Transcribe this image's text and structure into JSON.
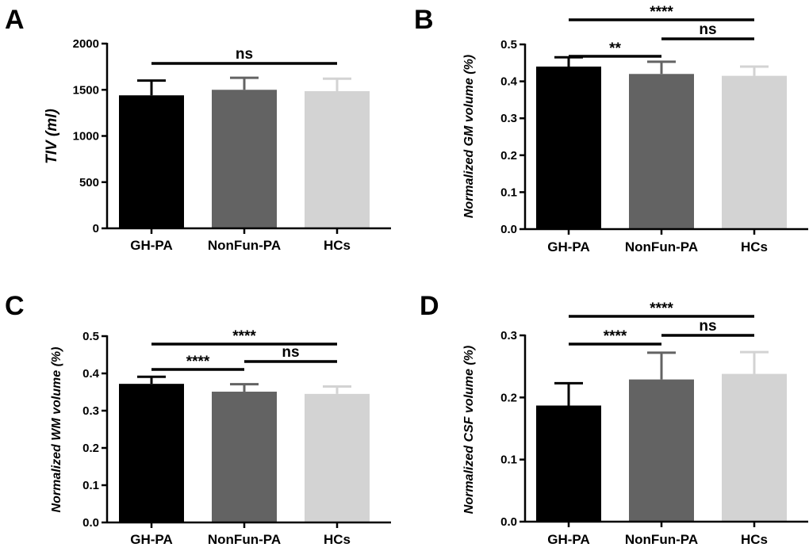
{
  "figure": {
    "panel_count": 4
  },
  "colors": {
    "bar_fills": [
      "#000000",
      "#636363",
      "#d3d3d3"
    ]
  },
  "chart_data": [
    {
      "panel": "A",
      "type": "bar",
      "categories": [
        "GH-PA",
        "NonFun-PA",
        "HCs"
      ],
      "values": [
        1440,
        1500,
        1485
      ],
      "errors": [
        160,
        130,
        135
      ],
      "ylabel": "TIV (ml)",
      "ylim": [
        0,
        2000
      ],
      "yticks": [
        0,
        500,
        1000,
        1500,
        2000
      ],
      "tick_labels": [
        "0",
        "500",
        "1000",
        "1500",
        "2000"
      ],
      "significance": [
        {
          "from": 0,
          "to": 2,
          "level": 1,
          "label": "ns"
        }
      ]
    },
    {
      "panel": "B",
      "type": "bar",
      "categories": [
        "GH-PA",
        "NonFun-PA",
        "HCs"
      ],
      "values": [
        0.44,
        0.42,
        0.415
      ],
      "errors": [
        0.025,
        0.033,
        0.025
      ],
      "ylabel": "Normalized GM volume (%)",
      "ylim": [
        0,
        0.5
      ],
      "yticks": [
        0,
        0.1,
        0.2,
        0.3,
        0.4,
        0.5
      ],
      "tick_labels": [
        "0.0",
        "0.1",
        "0.2",
        "0.3",
        "0.4",
        "0.5"
      ],
      "significance": [
        {
          "from": 0,
          "to": 1,
          "level": 1,
          "label": "**"
        },
        {
          "from": 1,
          "to": 2,
          "level": 2,
          "label": "ns"
        },
        {
          "from": 0,
          "to": 2,
          "level": 3,
          "label": "****"
        }
      ]
    },
    {
      "panel": "C",
      "type": "bar",
      "categories": [
        "GH-PA",
        "NonFun-PA",
        "HCs"
      ],
      "values": [
        0.372,
        0.351,
        0.345
      ],
      "errors": [
        0.019,
        0.02,
        0.02
      ],
      "ylabel": "Normalized WM volume (%)",
      "ylim": [
        0,
        0.5
      ],
      "yticks": [
        0,
        0.1,
        0.2,
        0.3,
        0.4,
        0.5
      ],
      "tick_labels": [
        "0.0",
        "0.1",
        "0.2",
        "0.3",
        "0.4",
        "0.5"
      ],
      "significance": [
        {
          "from": 0,
          "to": 1,
          "level": 1,
          "label": "****"
        },
        {
          "from": 1,
          "to": 2,
          "level": 2,
          "label": "ns"
        },
        {
          "from": 0,
          "to": 2,
          "level": 3,
          "label": "****"
        }
      ]
    },
    {
      "panel": "D",
      "type": "bar",
      "categories": [
        "GH-PA",
        "NonFun-PA",
        "HCs"
      ],
      "values": [
        0.187,
        0.229,
        0.238
      ],
      "errors": [
        0.036,
        0.043,
        0.035
      ],
      "ylabel": "Normalized CSF volume (%)",
      "ylim": [
        0,
        0.3
      ],
      "yticks": [
        0,
        0.1,
        0.2,
        0.3
      ],
      "tick_labels": [
        "0.0",
        "0.1",
        "0.2",
        "0.3"
      ],
      "significance": [
        {
          "from": 0,
          "to": 1,
          "level": 1,
          "label": "****"
        },
        {
          "from": 1,
          "to": 2,
          "level": 2,
          "label": "ns"
        },
        {
          "from": 0,
          "to": 2,
          "level": 3,
          "label": "****"
        }
      ]
    }
  ]
}
